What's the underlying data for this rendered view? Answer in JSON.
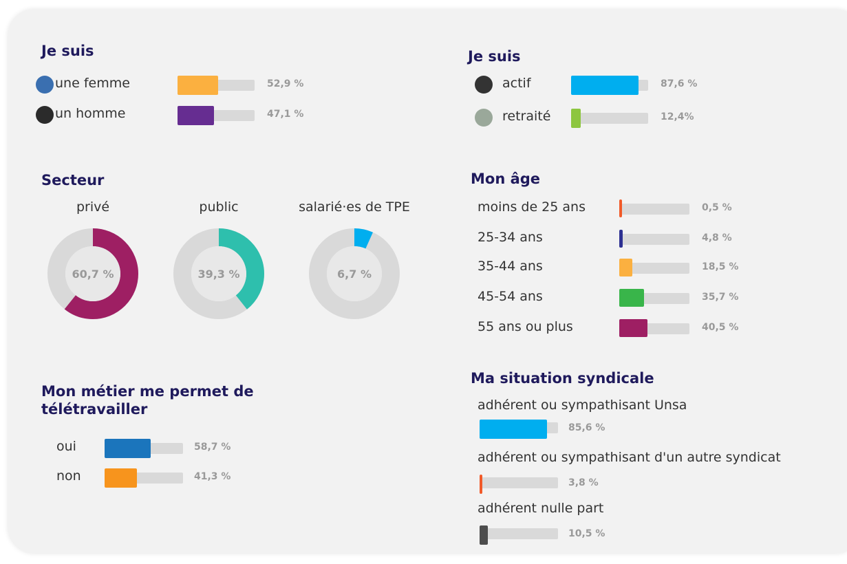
{
  "chart_data": [
    {
      "type": "bar",
      "title": "Je suis",
      "categories": [
        "une femme",
        "un homme"
      ],
      "values": [
        52.9,
        47.1
      ],
      "value_labels": [
        "52,9 %",
        "47,1 %"
      ],
      "colors": [
        "#fbb040",
        "#662d91"
      ],
      "xlim": [
        0,
        100
      ]
    },
    {
      "type": "bar",
      "title": "Je suis",
      "categories": [
        "actif",
        "retraité"
      ],
      "values": [
        87.6,
        12.4
      ],
      "value_labels": [
        "87,6 %",
        "12,4%"
      ],
      "colors": [
        "#00aeef",
        "#8dc63f"
      ],
      "xlim": [
        0,
        100
      ]
    },
    {
      "type": "donut",
      "title": "Secteur",
      "categories": [
        "privé",
        "public",
        "salarié·es de TPE"
      ],
      "values": [
        60.7,
        39.3,
        6.7
      ],
      "value_labels": [
        "60,7 %",
        "39,3 %",
        "6,7 %"
      ],
      "colors": [
        "#9e1f63",
        "#2ebfad",
        "#00aeef"
      ],
      "xlim": [
        0,
        100
      ]
    },
    {
      "type": "bar",
      "title": "Mon âge",
      "categories": [
        "moins de 25 ans",
        "25-34 ans",
        "35-44 ans",
        "45-54 ans",
        "55 ans ou plus"
      ],
      "values": [
        0.5,
        4.8,
        18.5,
        35.7,
        40.5
      ],
      "value_labels": [
        "0,5 %",
        "4,8 %",
        "18,5 %",
        "35,7 %",
        "40,5 %"
      ],
      "colors": [
        "#f15a29",
        "#2e3192",
        "#fbb040",
        "#39b54a",
        "#9e1f63"
      ],
      "xlim": [
        0,
        100
      ]
    },
    {
      "type": "bar",
      "title": "Mon métier me permet de télétravailler",
      "categories": [
        "oui",
        "non"
      ],
      "values": [
        58.7,
        41.3
      ],
      "value_labels": [
        "58,7 %",
        "41,3 %"
      ],
      "colors": [
        "#1b75bc",
        "#f7941d"
      ],
      "xlim": [
        0,
        100
      ]
    },
    {
      "type": "bar",
      "title": "Ma situation syndicale",
      "categories": [
        "adhérent ou sympathisant Unsa",
        "adhérent ou sympathisant d'un autre syndicat",
        "adhérent nulle part"
      ],
      "values": [
        85.6,
        3.8,
        10.5
      ],
      "value_labels": [
        "85,6 %",
        "3,8 %",
        "10,5 %"
      ],
      "colors": [
        "#00aeef",
        "#f15a29",
        "#4d4d4d"
      ],
      "xlim": [
        0,
        100
      ]
    }
  ]
}
